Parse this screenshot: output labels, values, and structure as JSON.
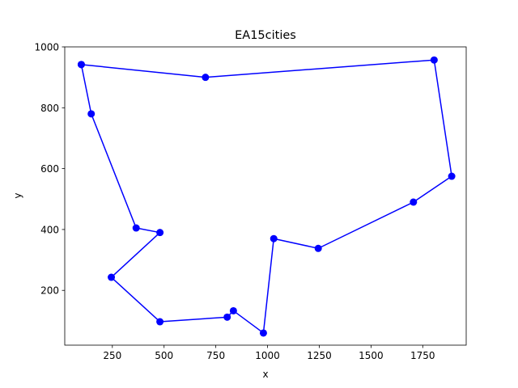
{
  "chart_data": {
    "type": "line",
    "title": "EA15cities",
    "xlabel": "x",
    "ylabel": "y",
    "xlim": [
      20,
      1960
    ],
    "ylim": [
      20,
      1000
    ],
    "xticks": [
      250,
      500,
      750,
      1000,
      1250,
      1500,
      1750
    ],
    "yticks": [
      200,
      400,
      600,
      800,
      1000
    ],
    "xtick_labels": [
      "250",
      "500",
      "750",
      "1000",
      "1250",
      "1500",
      "1750"
    ],
    "ytick_labels": [
      "200",
      "400",
      "600",
      "800",
      "1000"
    ],
    "grid": false,
    "series": [
      {
        "color": "#0000ff",
        "marker": "circle",
        "x": [
          100,
          700,
          1805,
          1890,
          1705,
          1245,
          1030,
          980,
          835,
          805,
          480,
          245,
          480,
          365,
          148,
          100
        ],
        "y": [
          942,
          900,
          957,
          575,
          490,
          338,
          370,
          60,
          133,
          112,
          97,
          243,
          390,
          405,
          780,
          942
        ]
      }
    ]
  }
}
